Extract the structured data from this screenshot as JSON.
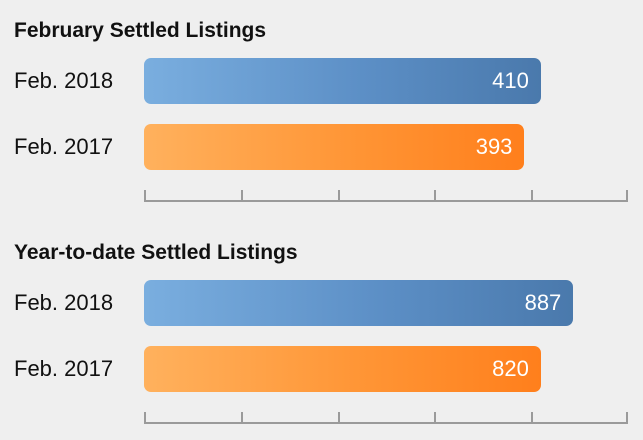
{
  "colors": {
    "series_2018": "#5c8fc6",
    "series_2017": "#ff9535",
    "background": "#efefef"
  },
  "chart_data": [
    {
      "type": "bar",
      "orientation": "horizontal",
      "title": "February Settled Listings",
      "categories": [
        "Feb. 2018",
        "Feb. 2017"
      ],
      "values": [
        410,
        393
      ],
      "value_labels": [
        "410",
        "393"
      ],
      "xlim": [
        0,
        500
      ],
      "grid": false,
      "tick_count": 6
    },
    {
      "type": "bar",
      "orientation": "horizontal",
      "title": "Year-to-date Settled Listings",
      "categories": [
        "Feb. 2018",
        "Feb. 2017"
      ],
      "values": [
        887,
        820
      ],
      "value_labels": [
        "887",
        "820"
      ],
      "xlim": [
        0,
        1000
      ],
      "grid": false,
      "tick_count": 6
    }
  ]
}
